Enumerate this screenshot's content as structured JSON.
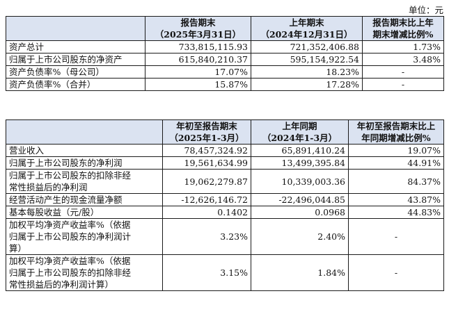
{
  "unit_label": "单位：元",
  "table1": {
    "headers": [
      "",
      [
        "报告期末",
        "（2025年3月31日）"
      ],
      [
        "上年期末",
        "（2024年12月31日）"
      ],
      [
        "报告期末比上年",
        "期末增减比例%"
      ]
    ],
    "rows": [
      {
        "label": "资产总计",
        "current": "733,815,115.93",
        "prior": "721,352,406.88",
        "change": "1.73%"
      },
      {
        "label": "归属于上市公司股东的净资产",
        "current": "615,840,210.37",
        "prior": "595,154,922.54",
        "change": "3.48%"
      },
      {
        "label": "资产负债率%（母公司）",
        "current": "17.07%",
        "prior": "18.23%",
        "change": "-"
      },
      {
        "label": "资产负债率%（合并）",
        "current": "15.87%",
        "prior": "17.28%",
        "change": "-"
      }
    ]
  },
  "table2": {
    "headers": [
      "",
      [
        "年初至报告期末",
        "（2025年1-3月）"
      ],
      [
        "上年同期",
        "（2024年1-3月）"
      ],
      [
        "年初至报告期末比上",
        "年同期增减比例%"
      ]
    ],
    "rows": [
      {
        "label": [
          "营业收入"
        ],
        "current": "78,457,324.92",
        "prior": "65,891,410.24",
        "change": "19.07%"
      },
      {
        "label": [
          "归属于上市公司股东的净利润"
        ],
        "current": "19,561,634.99",
        "prior": "13,499,395.84",
        "change": "44.91%"
      },
      {
        "label": [
          "归属于上市公司股东的扣除非经",
          "常性损益后的净利润"
        ],
        "current": "19,062,279.87",
        "prior": "10,339,003.36",
        "change": "84.37%"
      },
      {
        "label": [
          "经营活动产生的现金流量净额"
        ],
        "current": "-12,626,146.72",
        "prior": "-22,496,044.85",
        "change": "43.87%"
      },
      {
        "label": [
          "基本每股收益（元/股）"
        ],
        "current": "0.1402",
        "prior": "0.0968",
        "change": "44.83%"
      },
      {
        "label": [
          "加权平均净资产收益率%（依据",
          "归属于上市公司股东的净利润计",
          "算）"
        ],
        "current": "3.23%",
        "prior": "2.40%",
        "change": "-"
      },
      {
        "label": [
          "加权平均净资产收益率%（依据",
          "归属于上市公司股东的扣除非经",
          "常性损益后的净利润计算）"
        ],
        "current": "3.15%",
        "prior": "1.84%",
        "change": "-"
      }
    ]
  }
}
